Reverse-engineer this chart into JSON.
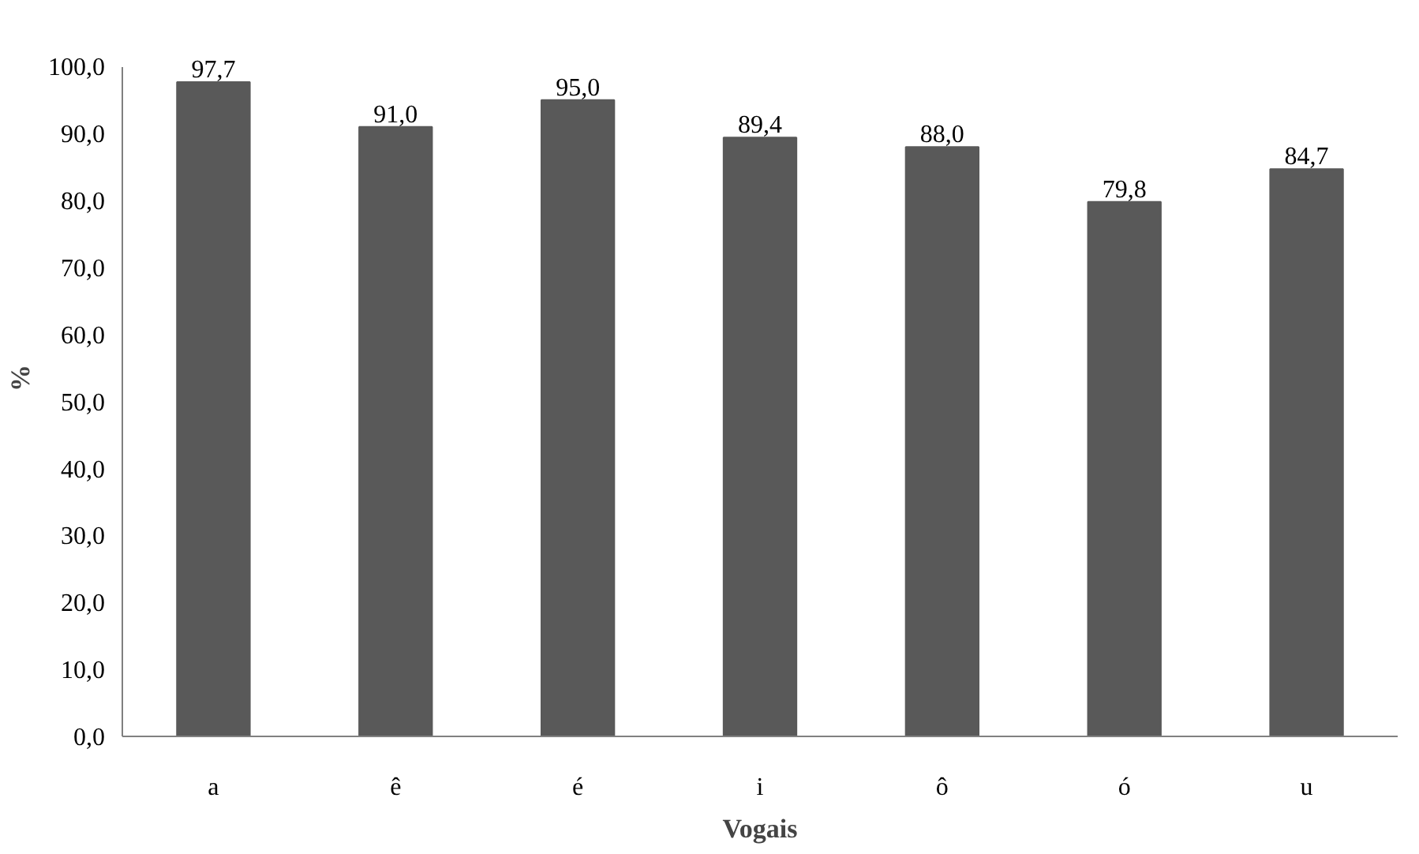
{
  "chart_data": {
    "type": "bar",
    "xlabel": "Vogais",
    "ylabel": "%",
    "categories": [
      "a",
      "ê",
      "é",
      "i",
      "ô",
      "ó",
      "u"
    ],
    "values": [
      97.7,
      91.0,
      95.0,
      89.4,
      88.0,
      79.8,
      84.7
    ],
    "value_labels": [
      "97,7",
      "91,0",
      "95,0",
      "89,4",
      "88,0",
      "79,8",
      "84,7"
    ],
    "color": "#595959",
    "ylim": [
      0,
      100
    ],
    "yticks": [
      {
        "value": 0,
        "label": "0,0"
      },
      {
        "value": 10,
        "label": "10,0"
      },
      {
        "value": 20,
        "label": "20,0"
      },
      {
        "value": 30,
        "label": "30,0"
      },
      {
        "value": 40,
        "label": "40,0"
      },
      {
        "value": 50,
        "label": "50,0"
      },
      {
        "value": 60,
        "label": "60,0"
      },
      {
        "value": 70,
        "label": "70,0"
      },
      {
        "value": 80,
        "label": "80,0"
      },
      {
        "value": 90,
        "label": "90,0"
      },
      {
        "value": 100,
        "label": "100,0"
      }
    ],
    "grid": false
  }
}
